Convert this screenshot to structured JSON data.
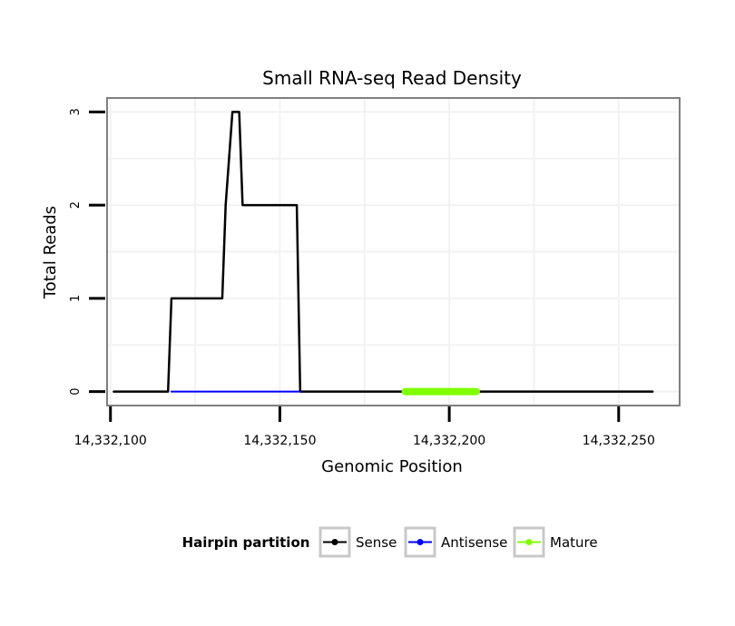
{
  "chart_data": {
    "type": "line",
    "title": "Small RNA-seq Read Density",
    "xlabel": "Genomic Position",
    "ylabel": "Total Reads",
    "xlim": [
      14332099,
      14332268
    ],
    "ylim": [
      -0.15,
      3.15
    ],
    "x_ticks": [
      14332100,
      14332150,
      14332200,
      14332250
    ],
    "x_tick_labels": [
      "14,332,100",
      "14,332,150",
      "14,332,200",
      "14,332,250"
    ],
    "y_ticks": [
      0,
      1,
      2,
      3
    ],
    "y_tick_labels": [
      "0",
      "1",
      "2",
      "3"
    ],
    "grid": true,
    "legend": {
      "title": "Hairpin partition",
      "placement": "bottom",
      "entries": [
        "Sense",
        "Antisense",
        "Mature"
      ]
    },
    "series": [
      {
        "name": "Sense",
        "color": "#000000",
        "x": [
          14332101,
          14332117,
          14332118,
          14332133,
          14332134,
          14332136,
          14332137,
          14332138,
          14332139,
          14332155,
          14332156,
          14332260
        ],
        "y": [
          0,
          0,
          1,
          1,
          2,
          3,
          3,
          3,
          2,
          2,
          0,
          0
        ]
      },
      {
        "name": "Antisense",
        "color": "#0000ff",
        "x": [
          14332118,
          14332156
        ],
        "y": [
          0,
          0
        ]
      },
      {
        "name": "Mature",
        "color": "#7fff00",
        "x": [
          14332187,
          14332208
        ],
        "y": [
          0,
          0
        ]
      }
    ]
  }
}
